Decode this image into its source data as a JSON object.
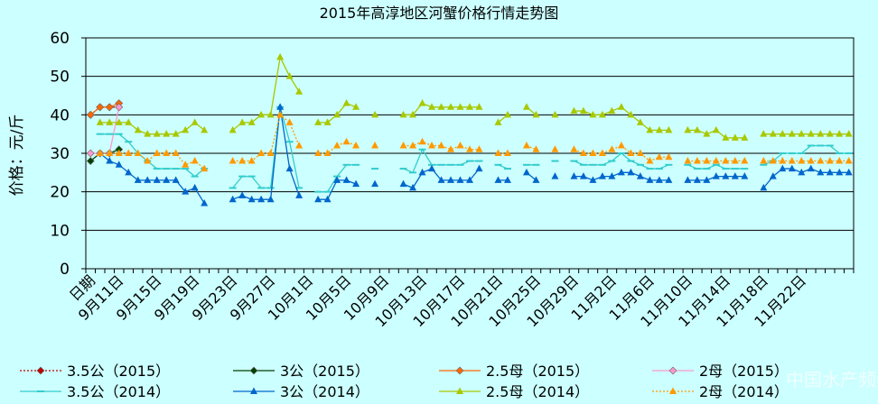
{
  "chart_data": {
    "type": "line",
    "title": "2015年高淳地区河蟹价格行情走势图",
    "y_label": "价格：元/斤",
    "watermark": "中国水产频道",
    "categories": [
      "日期",
      null,
      null,
      "9月11日",
      null,
      null,
      null,
      "9月15日",
      null,
      null,
      null,
      "9月19日",
      null,
      null,
      null,
      "9月23日",
      null,
      null,
      null,
      "9月27日",
      null,
      null,
      null,
      "10月1日",
      null,
      null,
      null,
      "10月5日",
      null,
      null,
      null,
      "10月9日",
      null,
      null,
      null,
      "10月13日",
      null,
      null,
      null,
      "10月17日",
      null,
      null,
      null,
      "10月21日",
      null,
      null,
      null,
      "10月25日",
      null,
      null,
      null,
      "10月29日",
      null,
      null,
      null,
      "11月2日",
      null,
      null,
      null,
      "11月6日",
      null,
      null,
      null,
      "11月10日",
      null,
      null,
      null,
      "11月14日",
      null,
      null,
      null,
      "11月18日",
      null,
      null,
      null,
      "11月22日",
      null,
      null,
      null,
      null,
      null
    ],
    "ylim": [
      0,
      60
    ],
    "yticks": [
      0,
      10,
      20,
      30,
      40,
      50,
      60
    ],
    "grid": true,
    "series": [
      {
        "name": "3.5公（2015）",
        "color": "#c00000",
        "marker": "diamond",
        "dash": "2,2",
        "values": [
          40,
          42,
          42,
          42,
          null,
          null,
          null,
          null,
          null,
          null,
          null,
          null,
          null,
          null,
          null,
          null,
          null,
          null,
          null,
          null,
          null,
          null,
          null,
          null,
          null,
          null,
          null,
          null,
          null,
          null,
          null,
          null,
          null,
          null,
          null,
          null,
          null,
          null,
          null,
          null,
          null,
          null,
          null,
          null,
          null,
          null,
          null,
          null,
          null,
          null,
          null,
          null,
          null,
          null,
          null,
          null,
          null,
          null,
          null,
          null,
          null,
          null,
          null,
          null,
          null,
          null,
          null,
          null,
          null,
          null,
          null,
          null,
          null,
          null,
          null,
          null,
          null,
          null,
          null,
          null,
          null
        ]
      },
      {
        "name": "3公（2015）",
        "color": "#004000",
        "marker": "diamond",
        "dash": "",
        "values": [
          28,
          30,
          30,
          31,
          null,
          null,
          null,
          null,
          null,
          null,
          null,
          null,
          null,
          null,
          null,
          null,
          null,
          null,
          null,
          null,
          null,
          null,
          null,
          null,
          null,
          null,
          null,
          null,
          null,
          null,
          null,
          null,
          null,
          null,
          null,
          null,
          null,
          null,
          null,
          null,
          null,
          null,
          null,
          null,
          null,
          null,
          null,
          null,
          null,
          null,
          null,
          null,
          null,
          null,
          null,
          null,
          null,
          null,
          null,
          null,
          null,
          null,
          null,
          null,
          null,
          null,
          null,
          null,
          null,
          null,
          null,
          null,
          null,
          null,
          null,
          null,
          null,
          null,
          null,
          null,
          null
        ]
      },
      {
        "name": "2.5母（2015）",
        "color": "#ff6600",
        "marker": "diamond",
        "dash": "",
        "values": [
          40,
          42,
          42,
          43,
          null,
          null,
          null,
          null,
          null,
          null,
          null,
          null,
          null,
          null,
          null,
          null,
          null,
          null,
          null,
          null,
          null,
          null,
          null,
          null,
          null,
          null,
          null,
          null,
          null,
          null,
          null,
          null,
          null,
          null,
          null,
          null,
          null,
          null,
          null,
          null,
          null,
          null,
          null,
          null,
          null,
          null,
          null,
          null,
          null,
          null,
          null,
          null,
          null,
          null,
          null,
          null,
          null,
          null,
          null,
          null,
          null,
          null,
          null,
          null,
          null,
          null,
          null,
          null,
          null,
          null,
          null,
          null,
          null,
          null,
          null,
          null,
          null,
          null,
          null,
          null,
          null
        ]
      },
      {
        "name": "2母（2015）",
        "color": "#ff99cc",
        "marker": "diamond",
        "dash": "",
        "values": [
          30,
          30,
          30,
          42,
          null,
          null,
          null,
          null,
          null,
          null,
          null,
          null,
          null,
          null,
          null,
          null,
          null,
          null,
          null,
          null,
          null,
          null,
          null,
          null,
          null,
          null,
          null,
          null,
          null,
          null,
          null,
          null,
          null,
          null,
          null,
          null,
          null,
          null,
          null,
          null,
          null,
          null,
          null,
          null,
          null,
          null,
          null,
          null,
          null,
          null,
          null,
          null,
          null,
          null,
          null,
          null,
          null,
          null,
          null,
          null,
          null,
          null,
          null,
          null,
          null,
          null,
          null,
          null,
          null,
          null,
          null,
          null,
          null,
          null,
          null,
          null,
          null,
          null,
          null,
          null,
          null
        ]
      },
      {
        "name": "3.5公（2014）",
        "color": "#33cccc",
        "marker": "dash",
        "dash": "",
        "values": [
          null,
          35,
          35,
          35,
          33,
          30,
          28,
          26,
          26,
          26,
          26,
          24,
          26,
          null,
          null,
          21,
          24,
          24,
          21,
          21,
          42,
          33,
          21,
          null,
          20,
          20,
          24,
          27,
          27,
          null,
          26,
          null,
          null,
          26,
          25,
          31,
          27,
          27,
          27,
          27,
          28,
          28,
          null,
          27,
          26,
          null,
          27,
          27,
          null,
          28,
          null,
          28,
          27,
          27,
          27,
          28,
          30,
          28,
          27,
          26,
          26,
          27,
          null,
          27,
          26,
          26,
          27,
          26,
          26,
          26,
          null,
          27,
          28,
          30,
          30,
          30,
          32,
          32,
          32,
          30,
          30
        ]
      },
      {
        "name": "3公（2014）",
        "color": "#0066cc",
        "marker": "triangle",
        "dash": "",
        "values": [
          null,
          30,
          28,
          27,
          25,
          23,
          23,
          23,
          23,
          23,
          20,
          21,
          17,
          null,
          null,
          18,
          19,
          18,
          18,
          18,
          42,
          26,
          19,
          null,
          18,
          18,
          23,
          23,
          22,
          null,
          22,
          null,
          null,
          22,
          21,
          25,
          26,
          23,
          23,
          23,
          23,
          26,
          null,
          23,
          23,
          null,
          25,
          23,
          null,
          24,
          null,
          24,
          24,
          23,
          24,
          24,
          25,
          25,
          24,
          23,
          23,
          23,
          null,
          23,
          23,
          23,
          24,
          24,
          24,
          24,
          null,
          21,
          24,
          26,
          26,
          25,
          26,
          25,
          25,
          25,
          25
        ]
      },
      {
        "name": "2.5母（2014）",
        "color": "#a8c800",
        "marker": "triangle",
        "dash": "",
        "values": [
          null,
          38,
          38,
          38,
          38,
          36,
          35,
          35,
          35,
          35,
          36,
          38,
          36,
          null,
          null,
          36,
          38,
          38,
          40,
          40,
          55,
          50,
          46,
          null,
          38,
          38,
          40,
          43,
          42,
          null,
          40,
          null,
          null,
          40,
          40,
          43,
          42,
          42,
          42,
          42,
          42,
          42,
          null,
          38,
          40,
          null,
          42,
          40,
          null,
          40,
          null,
          41,
          41,
          40,
          40,
          41,
          42,
          40,
          38,
          36,
          36,
          36,
          null,
          36,
          36,
          35,
          36,
          34,
          34,
          34,
          null,
          35,
          35,
          35,
          35,
          35,
          35,
          35,
          35,
          35,
          35
        ]
      },
      {
        "name": "2母（2014）",
        "color": "#ff9900",
        "marker": "triangle",
        "dash": "2,2",
        "values": [
          null,
          30,
          30,
          30,
          30,
          30,
          28,
          30,
          30,
          30,
          27,
          28,
          26,
          null,
          null,
          28,
          28,
          28,
          30,
          30,
          40,
          38,
          32,
          null,
          30,
          30,
          32,
          33,
          32,
          null,
          32,
          null,
          null,
          32,
          32,
          33,
          32,
          32,
          31,
          32,
          31,
          31,
          null,
          30,
          30,
          null,
          32,
          31,
          null,
          31,
          null,
          31,
          30,
          30,
          30,
          31,
          32,
          30,
          30,
          28,
          29,
          29,
          null,
          28,
          28,
          28,
          28,
          28,
          28,
          28,
          null,
          28,
          28,
          28,
          28,
          28,
          28,
          28,
          28,
          28,
          28
        ]
      }
    ]
  }
}
